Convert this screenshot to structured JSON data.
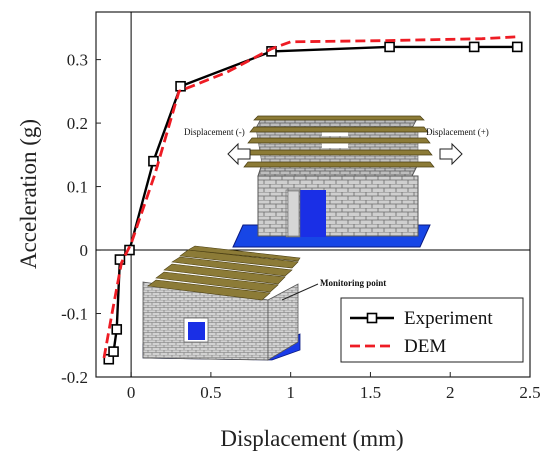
{
  "chart_data": {
    "type": "line",
    "title": "",
    "xlabel": "Displacement (mm)",
    "ylabel": "Acceleration (g)",
    "xlim": [
      -0.22,
      2.5
    ],
    "ylim": [
      -0.2,
      0.375
    ],
    "xticks": [
      "0",
      "0.5",
      "1",
      "1.5",
      "2",
      "2.5"
    ],
    "yticks": [
      "-0.2",
      "-0.1",
      "0",
      "0.1",
      "0.2",
      "0.3"
    ],
    "xtick_values": [
      0,
      0.5,
      1,
      1.5,
      2,
      2.5
    ],
    "ytick_values": [
      -0.2,
      -0.1,
      0,
      0.1,
      0.2,
      0.3
    ],
    "grid": false,
    "legend_position": "bottom-right",
    "series": [
      {
        "name": "Experiment",
        "color": "#000000",
        "style": "solid",
        "marker": "square",
        "x": [
          -0.14,
          -0.11,
          -0.09,
          -0.07,
          -0.01,
          0.14,
          0.31,
          0.88,
          1.62,
          2.15,
          2.42
        ],
        "y": [
          -0.172,
          -0.16,
          -0.125,
          -0.015,
          0.0,
          0.14,
          0.258,
          0.313,
          0.32,
          0.32,
          0.32
        ]
      },
      {
        "name": "DEM",
        "color": "#ee1c24",
        "style": "dashed",
        "marker": "none",
        "x": [
          -0.17,
          -0.12,
          -0.06,
          0.0,
          0.15,
          0.3,
          0.6,
          0.88,
          1.0,
          1.6,
          2.2,
          2.42
        ],
        "y": [
          -0.17,
          -0.1,
          -0.02,
          0.01,
          0.12,
          0.25,
          0.28,
          0.317,
          0.328,
          0.33,
          0.333,
          0.336
        ]
      }
    ],
    "annotations": {
      "disp_neg": "Displacement (-)",
      "disp_pos": "Displacement (+)",
      "monitoring": "Monitoring point"
    }
  },
  "colors": {
    "brick": "#c8c8c8",
    "mortar": "#6e6e6e",
    "timber": "#8a7a3a",
    "base": "#1240e0",
    "opening": "#1a2fe6"
  }
}
